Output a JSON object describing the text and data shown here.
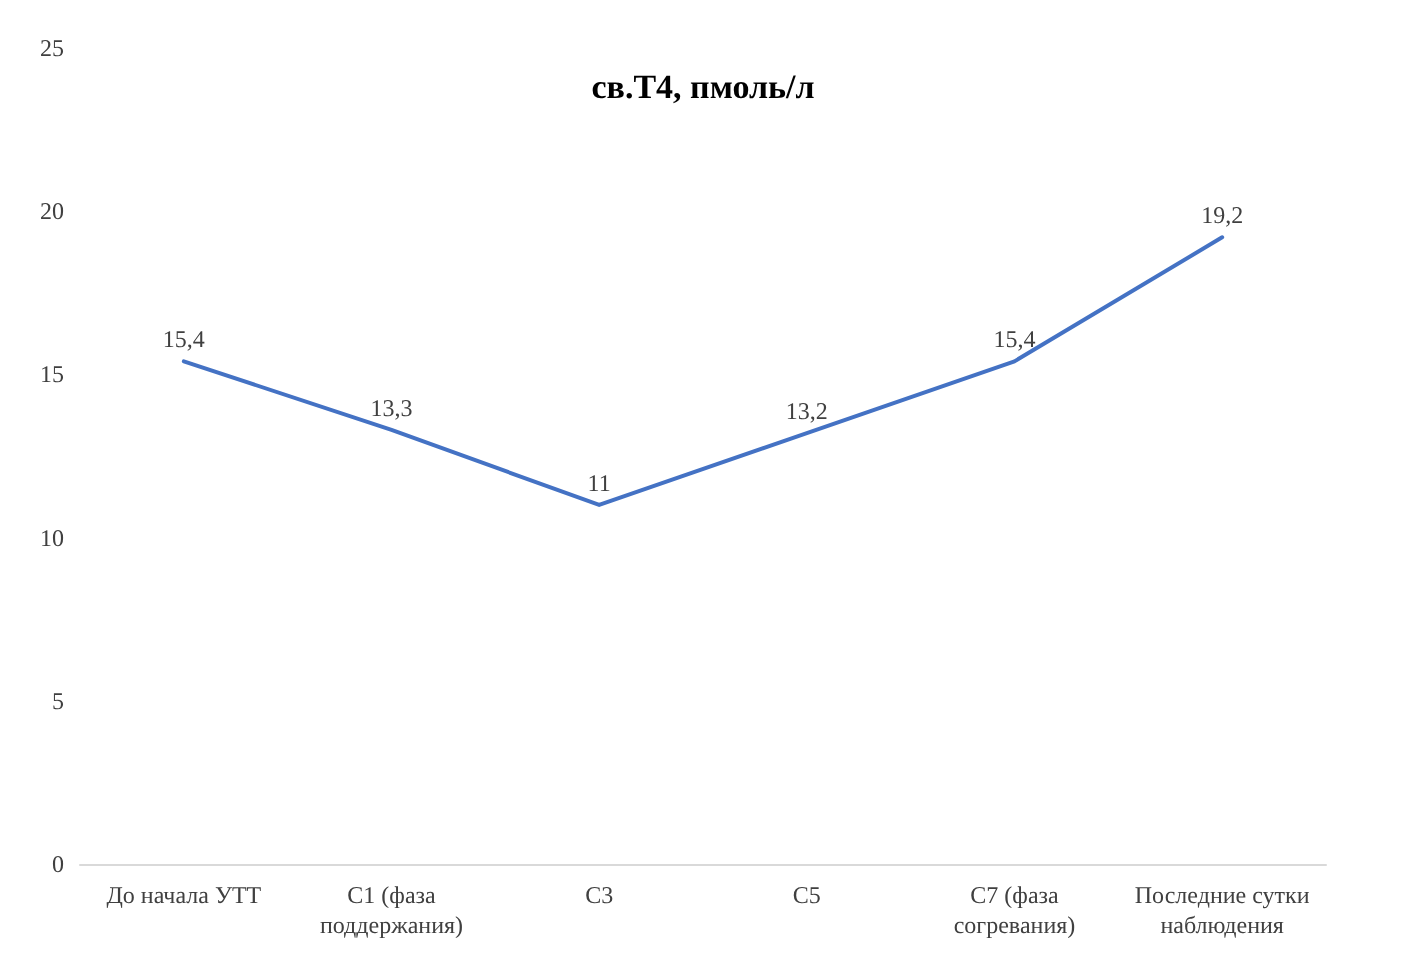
{
  "chart_data": {
    "type": "line",
    "title": "св.Т4, пмоль/л",
    "categories": [
      "До начала УТТ",
      "С1 (фаза поддержания)",
      "С3",
      "С5",
      "С7 (фаза согревания)",
      "Последние сутки наблюдения"
    ],
    "series": [
      {
        "color": "#4472c4",
        "values": [
          15.4,
          13.3,
          11,
          13.2,
          15.4,
          19.2
        ],
        "value_labels": [
          "15,4",
          "13,3",
          "11",
          "13,2",
          "15,4",
          "19,2"
        ]
      }
    ],
    "ylim": [
      0,
      25
    ],
    "yticks": [
      0,
      5,
      10,
      15,
      20,
      25
    ],
    "grid": false,
    "marker": "none",
    "line_style": "solid"
  }
}
